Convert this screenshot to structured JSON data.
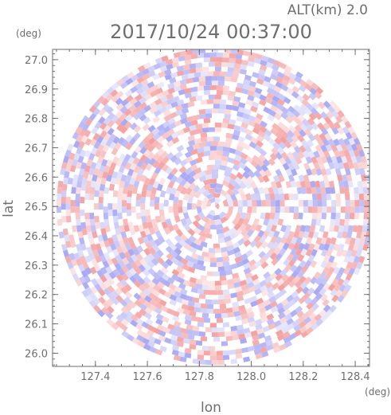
{
  "header": {
    "altitude": "ALT(km) 2.0",
    "timestamp": "2017/10/24 00:37:00"
  },
  "chart_data": {
    "type": "heatmap",
    "title": "",
    "xlabel": "lon",
    "ylabel": "lat",
    "x_unit": "(deg)",
    "y_unit": "(deg)",
    "xlim": [
      127.235,
      128.455
    ],
    "ylim": [
      25.955,
      27.035
    ],
    "x_ticks": [
      127.4,
      127.6,
      127.8,
      128.0,
      128.2,
      128.4
    ],
    "x_tick_labels": [
      "127.4",
      "127.6",
      "127.8",
      "128.0",
      "128.2",
      "128.4"
    ],
    "y_ticks": [
      26.0,
      26.1,
      26.2,
      26.3,
      26.4,
      26.5,
      26.6,
      26.7,
      26.8,
      26.9,
      27.0
    ],
    "y_tick_labels": [
      "26.0",
      "26.1",
      "26.2",
      "26.3",
      "26.4",
      "26.5",
      "26.6",
      "26.7",
      "26.8",
      "26.9",
      "27.0"
    ],
    "radar_center": [
      127.86,
      26.5
    ],
    "radar_radius_lat": 0.54,
    "grid": false,
    "colors": {
      "positive": "#f4a0a0",
      "negative": "#a8a8f4",
      "neutral": "#ffffff",
      "axis": "#6e6e6e"
    }
  }
}
